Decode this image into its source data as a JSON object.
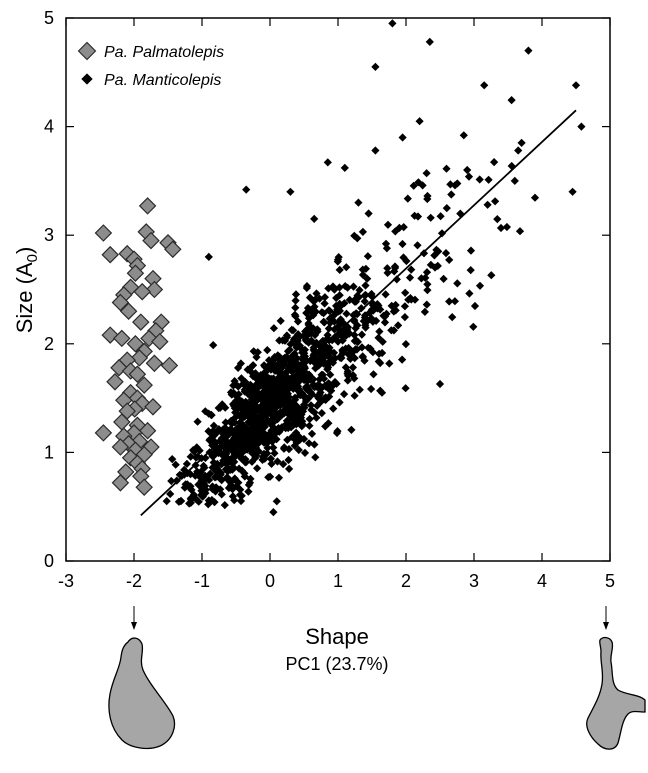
{
  "chart_data": {
    "type": "scatter",
    "xlabel": "Shape",
    "xlabel_sub": "PC1 (23.7%)",
    "ylabel": "Size (A",
    "ylabel_sub": "0",
    "ylabel_close": ")",
    "xlim": [
      -3,
      5
    ],
    "ylim": [
      0,
      5
    ],
    "x_ticks": [
      -3,
      -2,
      -1,
      0,
      1,
      2,
      3,
      4,
      5
    ],
    "y_ticks": [
      0,
      1,
      2,
      3,
      4,
      5
    ],
    "grid": false,
    "legend_position": "top-left",
    "fit_line": {
      "x": [
        -1.9,
        4.5
      ],
      "y": [
        0.42,
        4.15
      ]
    },
    "shape_arrows_at_x": [
      -2,
      5
    ],
    "series": [
      {
        "name": "Pa. Palmatolepis",
        "marker": "large-diamond",
        "color": "#8c8c8c",
        "points": [
          [
            -1.8,
            3.27
          ],
          [
            -2.45,
            3.02
          ],
          [
            -1.82,
            3.03
          ],
          [
            -1.75,
            2.95
          ],
          [
            -1.5,
            2.93
          ],
          [
            -1.43,
            2.87
          ],
          [
            -2.1,
            2.83
          ],
          [
            -2.0,
            2.78
          ],
          [
            -1.95,
            2.72
          ],
          [
            -2.35,
            2.82
          ],
          [
            -1.98,
            2.65
          ],
          [
            -1.72,
            2.6
          ],
          [
            -2.05,
            2.52
          ],
          [
            -1.7,
            2.5
          ],
          [
            -1.88,
            2.48
          ],
          [
            -2.15,
            2.45
          ],
          [
            -2.2,
            2.38
          ],
          [
            -2.08,
            2.3
          ],
          [
            -1.6,
            2.2
          ],
          [
            -1.9,
            2.2
          ],
          [
            -1.68,
            2.12
          ],
          [
            -2.35,
            2.08
          ],
          [
            -2.18,
            2.05
          ],
          [
            -1.78,
            2.05
          ],
          [
            -1.62,
            2.02
          ],
          [
            -1.98,
            2.0
          ],
          [
            -1.85,
            1.93
          ],
          [
            -1.92,
            1.87
          ],
          [
            -2.1,
            1.85
          ],
          [
            -1.7,
            1.82
          ],
          [
            -2.22,
            1.78
          ],
          [
            -2.05,
            1.75
          ],
          [
            -1.95,
            1.72
          ],
          [
            -1.48,
            1.8
          ],
          [
            -2.28,
            1.65
          ],
          [
            -1.85,
            1.62
          ],
          [
            -2.05,
            1.55
          ],
          [
            -1.95,
            1.5
          ],
          [
            -2.15,
            1.48
          ],
          [
            -1.88,
            1.45
          ],
          [
            -1.72,
            1.42
          ],
          [
            -1.99,
            1.4
          ],
          [
            -2.1,
            1.38
          ],
          [
            -2.18,
            1.28
          ],
          [
            -1.95,
            1.25
          ],
          [
            -1.8,
            1.2
          ],
          [
            -2.0,
            1.18
          ],
          [
            -2.45,
            1.18
          ],
          [
            -2.15,
            1.15
          ],
          [
            -1.92,
            1.1
          ],
          [
            -2.08,
            1.08
          ],
          [
            -2.2,
            1.05
          ],
          [
            -1.75,
            1.05
          ],
          [
            -1.98,
            1.02
          ],
          [
            -1.85,
            0.98
          ],
          [
            -2.05,
            0.95
          ],
          [
            -1.95,
            0.9
          ],
          [
            -1.88,
            0.85
          ],
          [
            -2.12,
            0.82
          ],
          [
            -1.9,
            0.78
          ],
          [
            -2.2,
            0.72
          ],
          [
            -1.85,
            0.68
          ]
        ]
      },
      {
        "name": "Pa. Manticolepis",
        "marker": "small-diamond",
        "color": "#000000",
        "generated_count": 1250,
        "points": [
          [
            1.8,
            4.95
          ],
          [
            2.35,
            4.78
          ],
          [
            3.8,
            4.7
          ],
          [
            1.55,
            4.55
          ],
          [
            4.5,
            4.38
          ],
          [
            3.15,
            4.38
          ],
          [
            4.58,
            4.0
          ],
          [
            2.2,
            4.05
          ],
          [
            1.95,
            3.9
          ],
          [
            2.85,
            3.92
          ],
          [
            3.7,
            3.85
          ],
          [
            3.65,
            3.78
          ],
          [
            1.55,
            3.78
          ],
          [
            0.85,
            3.67
          ],
          [
            1.1,
            3.62
          ],
          [
            4.45,
            3.4
          ],
          [
            -0.35,
            3.42
          ],
          [
            3.2,
            3.28
          ],
          [
            1.3,
            3.3
          ],
          [
            2.6,
            3.25
          ],
          [
            -0.9,
            2.8
          ],
          [
            2.5,
            1.63
          ],
          [
            0.05,
            0.45
          ],
          [
            -1.85,
            0.68
          ],
          [
            0.1,
            0.55
          ],
          [
            3.6,
            3.5
          ],
          [
            2.9,
            3.6
          ],
          [
            1.45,
            3.2
          ],
          [
            0.65,
            3.15
          ],
          [
            0.3,
            3.4
          ]
        ]
      }
    ]
  }
}
